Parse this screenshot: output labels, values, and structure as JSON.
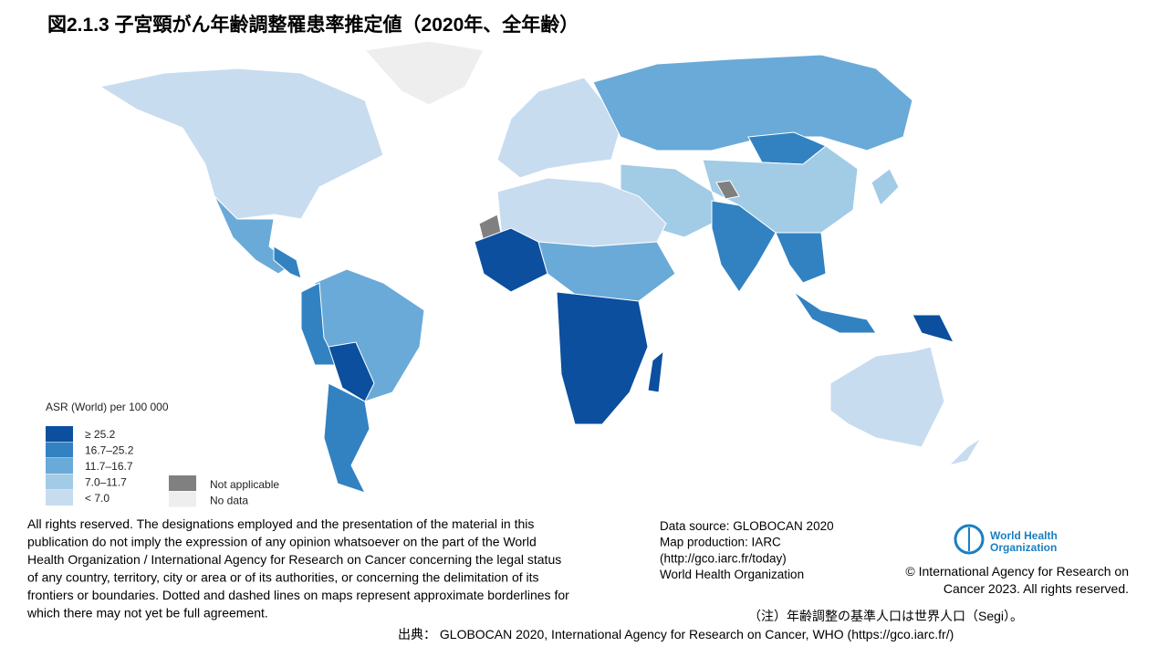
{
  "header": {
    "title": "図2.1.3 子宮頸がん年齢調整罹患率推定値（2020年、全年齢）"
  },
  "legend": {
    "title": "ASR (World) per 100 000",
    "items": [
      {
        "label": "≥ 25.2",
        "color": "#0b4f9e"
      },
      {
        "label": "16.7–25.2",
        "color": "#3282c2"
      },
      {
        "label": "11.7–16.7",
        "color": "#6aaad8"
      },
      {
        "label": "7.0–11.7",
        "color": "#a2cbe6"
      },
      {
        "label": "< 7.0",
        "color": "#c8dcf0"
      }
    ],
    "other": [
      {
        "label": "Not applicable",
        "color": "#808080"
      },
      {
        "label": "No data",
        "color": "#eeeeee"
      }
    ]
  },
  "disclaimer": [
    "All rights reserved. The designations employed and the presentation of the material in this",
    "publication do not imply the expression of any opinion whatsoever on the part of the World",
    "Health Organization / International Agency for Research on Cancer concerning the legal status",
    "of any country, territory, city or area or of its authorities, or concerning the delimitation of its",
    "frontiers or boundaries. Dotted and dashed lines on maps represent approximate borderlines for",
    "which there may not yet be full agreement."
  ],
  "source": [
    "Data source: GLOBOCAN 2020",
    "Map production: IARC",
    "(http://gco.iarc.fr/today)",
    "World Health Organization"
  ],
  "logo": [
    "World Health",
    "Organization"
  ],
  "copyright": [
    "© International Agency for Research on",
    "Cancer 2023. All rights reserved."
  ],
  "note": "（注）年齢調整の基準人口は世界人口（Segi）。",
  "citation": "出典： GLOBOCAN 2020, International Agency for Research on Cancer, WHO (https://gco.iarc.fr/)"
}
